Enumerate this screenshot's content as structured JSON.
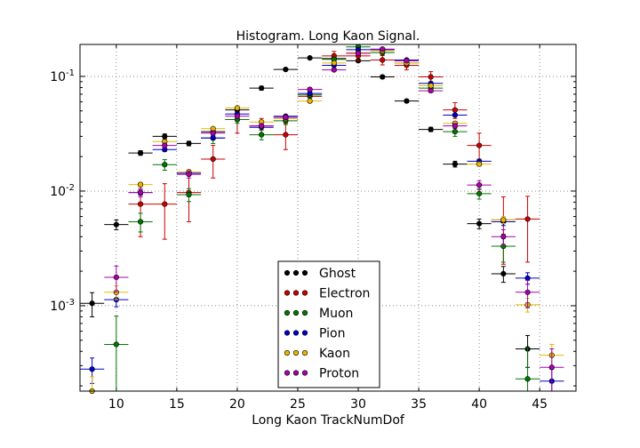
{
  "chart_data": {
    "type": "scatter",
    "title": "Histogram. Long Kaon Signal.",
    "xlabel": "Long Kaon TrackNumDof",
    "ylabel": "",
    "xlim": [
      7,
      48
    ],
    "ylim": [
      0.00018,
      0.19
    ],
    "yscale": "log",
    "grid": true,
    "legend_position": "bottom-center",
    "x_ticks": [
      {
        "value": 10,
        "label": "10"
      },
      {
        "value": 15,
        "label": "15"
      },
      {
        "value": 20,
        "label": "20"
      },
      {
        "value": 25,
        "label": "25"
      },
      {
        "value": 30,
        "label": "30"
      },
      {
        "value": 35,
        "label": "35"
      },
      {
        "value": 40,
        "label": "40"
      },
      {
        "value": 45,
        "label": "45"
      }
    ],
    "y_ticks": [
      {
        "value": 0.1,
        "base": "10",
        "exp": "-1"
      },
      {
        "value": 0.01,
        "base": "10",
        "exp": "-2"
      },
      {
        "value": 0.001,
        "base": "10",
        "exp": "-3"
      }
    ],
    "series": [
      {
        "name": "Ghost",
        "color": "#000000",
        "xoffset": 0,
        "xerr": 1,
        "points": [
          [
            8,
            0.00105,
            0.00025
          ],
          [
            10,
            0.0051,
            0.0005
          ],
          [
            12,
            0.0215,
            0.001
          ],
          [
            14,
            0.03,
            0.0015
          ],
          [
            16,
            0.026,
            0.0012
          ],
          [
            18,
            0.033,
            0.0015
          ],
          [
            20,
            0.051,
            0.002
          ],
          [
            22,
            0.079,
            0.003
          ],
          [
            24,
            0.115,
            0.003
          ],
          [
            26,
            0.145,
            0.003
          ],
          [
            28,
            0.143,
            0.003
          ],
          [
            30,
            0.137,
            0.003
          ],
          [
            32,
            0.099,
            0.003
          ],
          [
            34,
            0.061,
            0.002
          ],
          [
            36,
            0.0345,
            0.0015
          ],
          [
            38,
            0.0172,
            0.001
          ],
          [
            40,
            0.0052,
            0.0005
          ],
          [
            42,
            0.0019,
            0.0003
          ],
          [
            44,
            0.00042,
            0.00013
          ]
        ]
      },
      {
        "name": "Electron",
        "color": "#cc0000",
        "xoffset": 0,
        "xerr": 1,
        "points": [
          [
            12,
            0.0077,
            0.0037
          ],
          [
            14,
            0.0077,
            0.0039
          ],
          [
            16,
            0.0097,
            0.0043
          ],
          [
            18,
            0.019,
            0.006
          ],
          [
            20,
            0.042,
            0.01
          ],
          [
            22,
            0.037,
            0.006
          ],
          [
            24,
            0.031,
            0.008
          ],
          [
            26,
            0.067,
            0.008
          ],
          [
            28,
            0.151,
            0.014
          ],
          [
            30,
            0.151,
            0.014
          ],
          [
            32,
            0.139,
            0.013
          ],
          [
            34,
            0.125,
            0.011
          ],
          [
            36,
            0.099,
            0.011
          ],
          [
            38,
            0.051,
            0.008
          ],
          [
            40,
            0.025,
            0.007
          ],
          [
            42,
            0.0056,
            0.0033
          ],
          [
            44,
            0.0057,
            0.0033
          ]
        ]
      },
      {
        "name": "Muon",
        "color": "#007700",
        "xoffset": 0,
        "xerr": 1,
        "points": [
          [
            10,
            0.00046,
            0.00035
          ],
          [
            12,
            0.0054,
            0.001
          ],
          [
            14,
            0.017,
            0.0018
          ],
          [
            16,
            0.0093,
            0.0012
          ],
          [
            18,
            0.029,
            0.003
          ],
          [
            20,
            0.042,
            0.003
          ],
          [
            22,
            0.031,
            0.003
          ],
          [
            24,
            0.041,
            0.003
          ],
          [
            26,
            0.069,
            0.004
          ],
          [
            28,
            0.141,
            0.005
          ],
          [
            30,
            0.181,
            0.006
          ],
          [
            32,
            0.161,
            0.005
          ],
          [
            34,
            0.131,
            0.005
          ],
          [
            36,
            0.079,
            0.004
          ],
          [
            38,
            0.033,
            0.003
          ],
          [
            40,
            0.0095,
            0.001
          ],
          [
            42,
            0.0033,
            0.0009
          ],
          [
            44,
            0.00023,
            0.0002
          ]
        ]
      },
      {
        "name": "Pion",
        "color": "#0000cc",
        "xoffset": 0,
        "xerr": 1,
        "points": [
          [
            8,
            0.00028,
            7e-05
          ],
          [
            10,
            0.00113,
            0.00015
          ],
          [
            12,
            0.0097,
            0.0005
          ],
          [
            14,
            0.023,
            0.0008
          ],
          [
            16,
            0.0143,
            0.0006
          ],
          [
            18,
            0.029,
            0.0009
          ],
          [
            20,
            0.047,
            0.0012
          ],
          [
            22,
            0.036,
            0.001
          ],
          [
            24,
            0.045,
            0.0012
          ],
          [
            26,
            0.071,
            0.0015
          ],
          [
            28,
            0.125,
            0.002
          ],
          [
            30,
            0.171,
            0.0025
          ],
          [
            32,
            0.171,
            0.0025
          ],
          [
            34,
            0.139,
            0.002
          ],
          [
            36,
            0.087,
            0.0018
          ],
          [
            38,
            0.046,
            0.0013
          ],
          [
            40,
            0.0182,
            0.0008
          ],
          [
            42,
            0.0054,
            0.0004
          ],
          [
            44,
            0.00174,
            0.0002
          ],
          [
            46,
            0.00022,
            6e-05
          ]
        ]
      },
      {
        "name": "Kaon",
        "color": "#e6b800",
        "xoffset": 0,
        "xerr": 1,
        "points": [
          [
            8,
            0.00018,
            6e-05
          ],
          [
            10,
            0.00131,
            0.00018
          ],
          [
            12,
            0.0114,
            0.0005
          ],
          [
            14,
            0.027,
            0.0009
          ],
          [
            16,
            0.0147,
            0.0006
          ],
          [
            18,
            0.035,
            0.001
          ],
          [
            20,
            0.053,
            0.0012
          ],
          [
            22,
            0.04,
            0.001
          ],
          [
            24,
            0.043,
            0.001
          ],
          [
            26,
            0.061,
            0.0012
          ],
          [
            28,
            0.131,
            0.002
          ],
          [
            30,
            0.161,
            0.002
          ],
          [
            32,
            0.167,
            0.002
          ],
          [
            34,
            0.131,
            0.002
          ],
          [
            36,
            0.083,
            0.0015
          ],
          [
            38,
            0.039,
            0.001
          ],
          [
            40,
            0.0172,
            0.0007
          ],
          [
            42,
            0.0056,
            0.0004
          ],
          [
            44,
            0.00102,
            0.00014
          ],
          [
            46,
            0.00037,
            9e-05
          ]
        ]
      },
      {
        "name": "Proton",
        "color": "#aa00aa",
        "xoffset": 0,
        "xerr": 1,
        "points": [
          [
            10,
            0.00177,
            0.00045
          ],
          [
            12,
            0.0097,
            0.0008
          ],
          [
            14,
            0.025,
            0.0012
          ],
          [
            16,
            0.014,
            0.001
          ],
          [
            18,
            0.032,
            0.0015
          ],
          [
            20,
            0.045,
            0.002
          ],
          [
            22,
            0.037,
            0.0018
          ],
          [
            24,
            0.044,
            0.002
          ],
          [
            26,
            0.077,
            0.0025
          ],
          [
            28,
            0.114,
            0.003
          ],
          [
            30,
            0.159,
            0.003
          ],
          [
            32,
            0.173,
            0.003
          ],
          [
            34,
            0.137,
            0.003
          ],
          [
            36,
            0.075,
            0.0025
          ],
          [
            38,
            0.037,
            0.0018
          ],
          [
            40,
            0.0113,
            0.001
          ],
          [
            42,
            0.004,
            0.0006
          ],
          [
            44,
            0.00131,
            0.00035
          ],
          [
            46,
            0.00029,
            0.00013
          ]
        ]
      }
    ]
  }
}
